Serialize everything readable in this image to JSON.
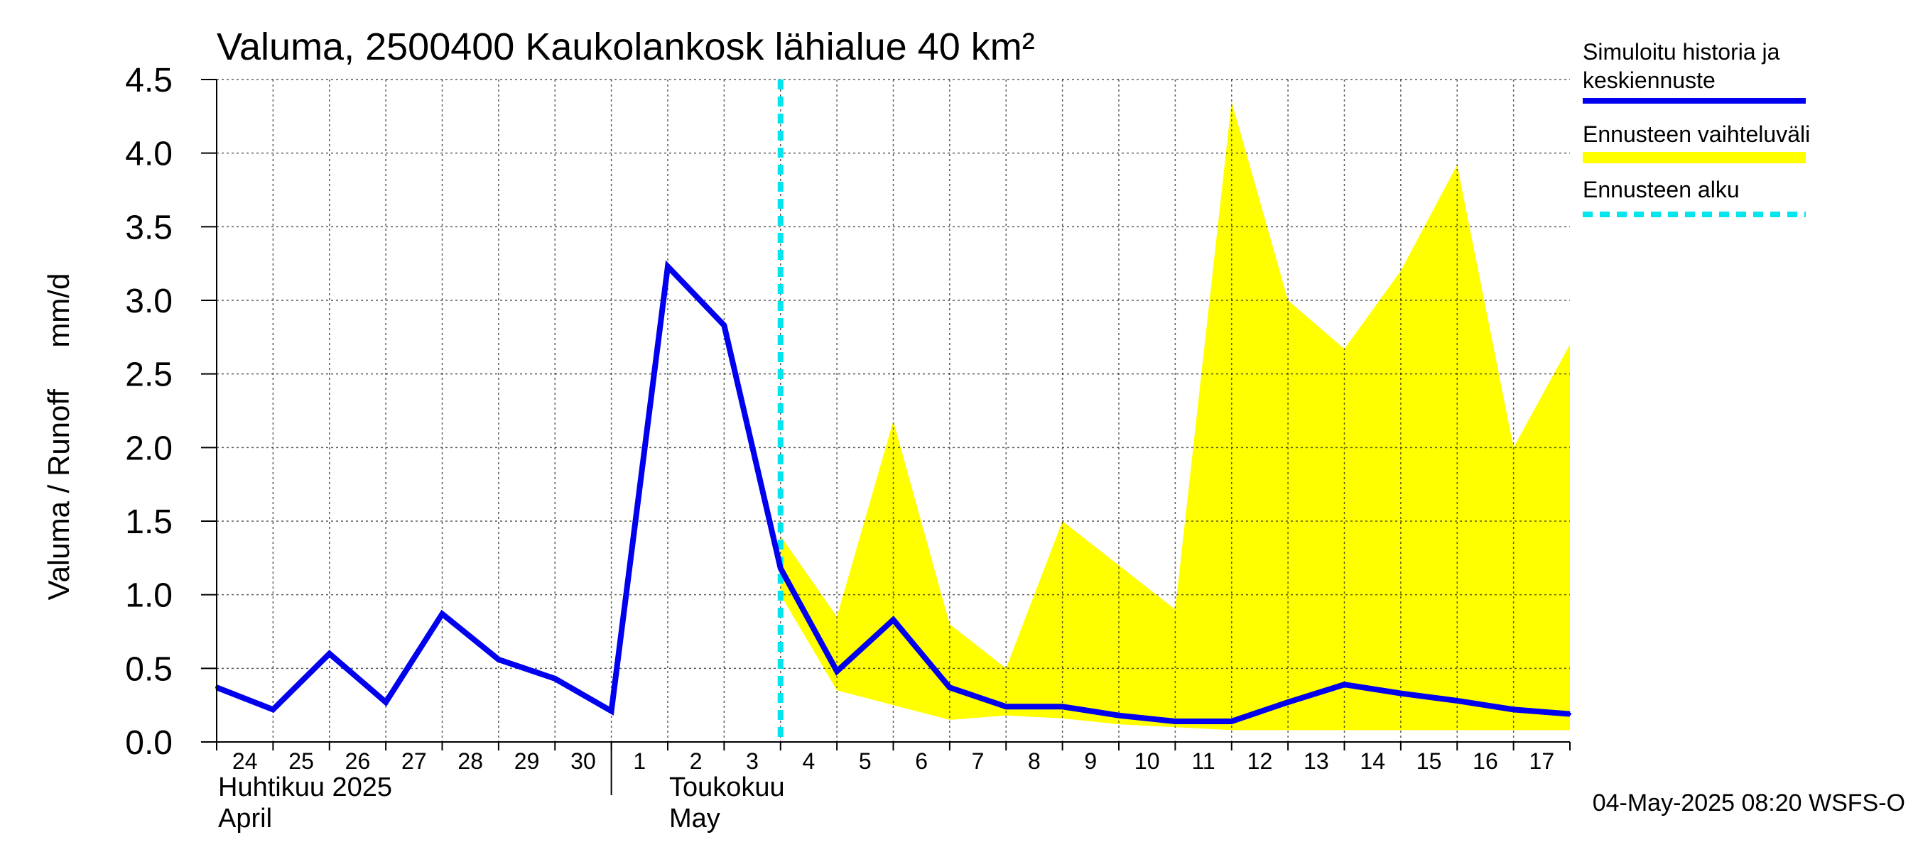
{
  "chart_data": {
    "type": "line",
    "title": "Valuma, 2500400 Kaukolankosk lähialue 40 km²",
    "ylabel": "Valuma / Runoff     mm/d",
    "ylim": [
      0,
      4.5
    ],
    "yticks": [
      0.0,
      0.5,
      1.0,
      1.5,
      2.0,
      2.5,
      3.0,
      3.5,
      4.0,
      4.5
    ],
    "ytick_labels": [
      "0.0",
      "0.5",
      "1.0",
      "1.5",
      "2.0",
      "2.5",
      "3.0",
      "3.5",
      "4.0",
      "4.5"
    ],
    "x_day_labels": [
      "24",
      "25",
      "26",
      "27",
      "28",
      "29",
      "30",
      "1",
      "2",
      "3",
      "4",
      "5",
      "6",
      "7",
      "8",
      "9",
      "10",
      "11",
      "12",
      "13",
      "14",
      "15",
      "16",
      "17"
    ],
    "x_range_days": [
      0,
      24
    ],
    "month_labels": [
      {
        "line1": "Huhtikuu  2025",
        "line2": "April",
        "day_index": 0
      },
      {
        "line1": "Toukokuu",
        "line2": "May",
        "day_index": 8
      }
    ],
    "month_boundary_day": 7,
    "forecast_start_day": 10,
    "series": [
      {
        "name": "Simuloitu historia ja keskiennuste",
        "color": "#0000ee",
        "x": [
          0,
          1,
          2,
          3,
          4,
          5,
          6,
          7,
          8,
          9,
          10,
          11,
          12,
          13,
          14,
          15,
          16,
          17,
          18,
          19,
          20,
          21,
          22,
          23,
          24
        ],
        "values": [
          0.37,
          0.22,
          0.6,
          0.27,
          0.87,
          0.56,
          0.43,
          0.21,
          3.23,
          2.83,
          1.18,
          0.48,
          0.83,
          0.37,
          0.24,
          0.24,
          0.18,
          0.14,
          0.14,
          0.27,
          0.39,
          0.33,
          0.28,
          0.22,
          0.19
        ]
      }
    ],
    "band": {
      "name": "Ennusteen vaihteluväli",
      "color": "#ffff00",
      "x": [
        10,
        11,
        12,
        13,
        14,
        15,
        16,
        17,
        18,
        19,
        20,
        21,
        22,
        23,
        24
      ],
      "upper": [
        1.4,
        0.85,
        2.18,
        0.8,
        0.5,
        1.5,
        1.2,
        0.9,
        4.35,
        3.0,
        2.67,
        3.2,
        3.92,
        2.0,
        2.7
      ],
      "lower": [
        1.0,
        0.35,
        0.25,
        0.15,
        0.18,
        0.16,
        0.12,
        0.1,
        0.08,
        0.08,
        0.08,
        0.08,
        0.08,
        0.08,
        0.08
      ]
    },
    "legend": {
      "position": "right",
      "items": [
        {
          "line1": "Simuloitu historia ja",
          "line2": "keskiennuste",
          "style": "solid",
          "color": "#0000ee"
        },
        {
          "line1": "Ennusteen vaihteluväli",
          "line2": "",
          "style": "band",
          "color": "#ffff00"
        },
        {
          "line1": "Ennusteen alku",
          "line2": "",
          "style": "dashed",
          "color": "#00e5ee"
        }
      ]
    },
    "grid": true,
    "footer": "04-May-2025 08:20 WSFS-O"
  }
}
